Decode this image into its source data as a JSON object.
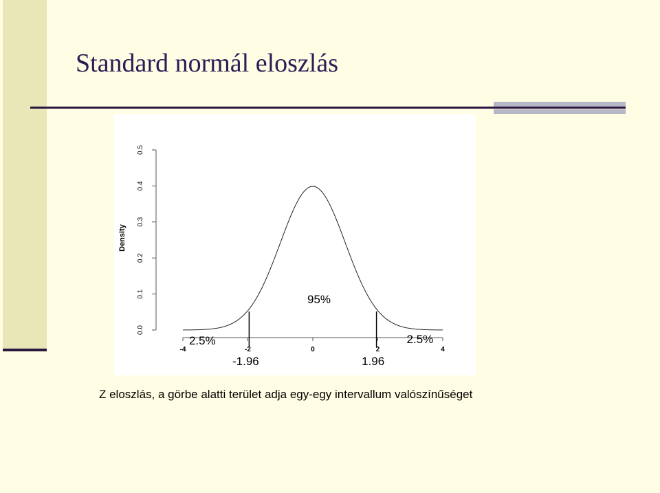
{
  "slide": {
    "title": "Standard normál eloszlás",
    "caption": "Z eloszlás, a görbe alatti terület adja egy-egy intervallum valószínűséget"
  },
  "chart_data": {
    "type": "line",
    "ylabel": "Density",
    "xlim": [
      -4,
      4
    ],
    "ylim": [
      0,
      0.5
    ],
    "x_ticks": [
      "-4",
      "-2",
      "0",
      "2",
      "4"
    ],
    "y_ticks": [
      "0.0",
      "0.1",
      "0.2",
      "0.3",
      "0.4",
      "0.5"
    ],
    "series": [
      {
        "x": [
          -4,
          -3.5,
          -3,
          -2.5,
          -2,
          -1.75,
          -1.5,
          -1.25,
          -1,
          -0.75,
          -0.5,
          -0.25,
          0,
          0.25,
          0.5,
          0.75,
          1,
          1.25,
          1.5,
          1.75,
          2,
          2.5,
          3,
          3.5,
          4
        ],
        "values": [
          0.0001,
          0.0009,
          0.0044,
          0.0175,
          0.054,
          0.0863,
          0.1295,
          0.1826,
          0.242,
          0.3011,
          0.3521,
          0.3867,
          0.3989,
          0.3867,
          0.3521,
          0.3011,
          0.242,
          0.1826,
          0.1295,
          0.0863,
          0.054,
          0.0175,
          0.0044,
          0.0009,
          0.0001
        ]
      }
    ],
    "critical_lines": [
      {
        "x": -1.96,
        "label": "-1.96"
      },
      {
        "x": 1.96,
        "label": "1.96"
      }
    ],
    "annotations": {
      "center": "95%",
      "left_tail": "2.5%",
      "right_tail": "2.5%"
    }
  }
}
